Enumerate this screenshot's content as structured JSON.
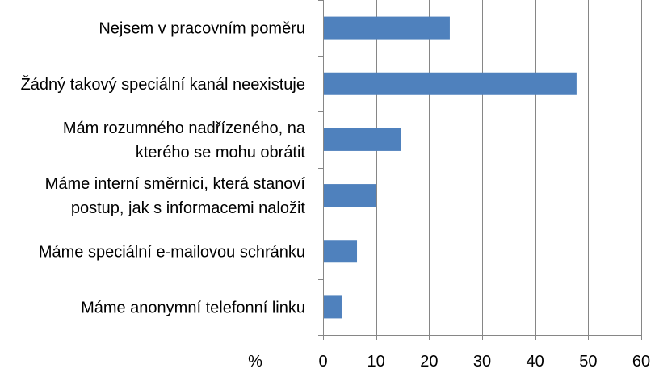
{
  "chart_data": {
    "type": "bar",
    "orientation": "horizontal",
    "categories": [
      "Nejsem v pracovním poměru",
      "Žádný takový speciální kanál neexistuje",
      "Mám rozumného nadřízeného, na kterého se mohu obrátit",
      "Máme interní směrnici, která stanoví postup, jak s informacemi naložit",
      "Máme speciální e-mailovou schránku",
      "Máme anonymní telefonní linku"
    ],
    "category_lines": [
      [
        "Nejsem v pracovním poměru"
      ],
      [
        "Žádný takový speciální kanál neexistuje"
      ],
      [
        "Mám rozumného nadřízeného, na",
        "kterého se mohu obrátit"
      ],
      [
        "Máme interní směrnici, která stanoví",
        "postup, jak s informacemi naložit"
      ],
      [
        "Máme speciální e-mailovou schránku"
      ],
      [
        "Máme anonymní telefonní linku"
      ]
    ],
    "values": [
      23.9,
      47.8,
      14.7,
      10.0,
      6.4,
      3.5
    ],
    "xlabel": "%",
    "ylabel": "",
    "xlim": [
      0,
      60
    ],
    "xticks": [
      "0",
      "10",
      "20",
      "30",
      "40",
      "50",
      "60"
    ],
    "grid": "vertical",
    "bar_color": "#4f81bd",
    "grid_color": "#868686",
    "legend": "none"
  }
}
